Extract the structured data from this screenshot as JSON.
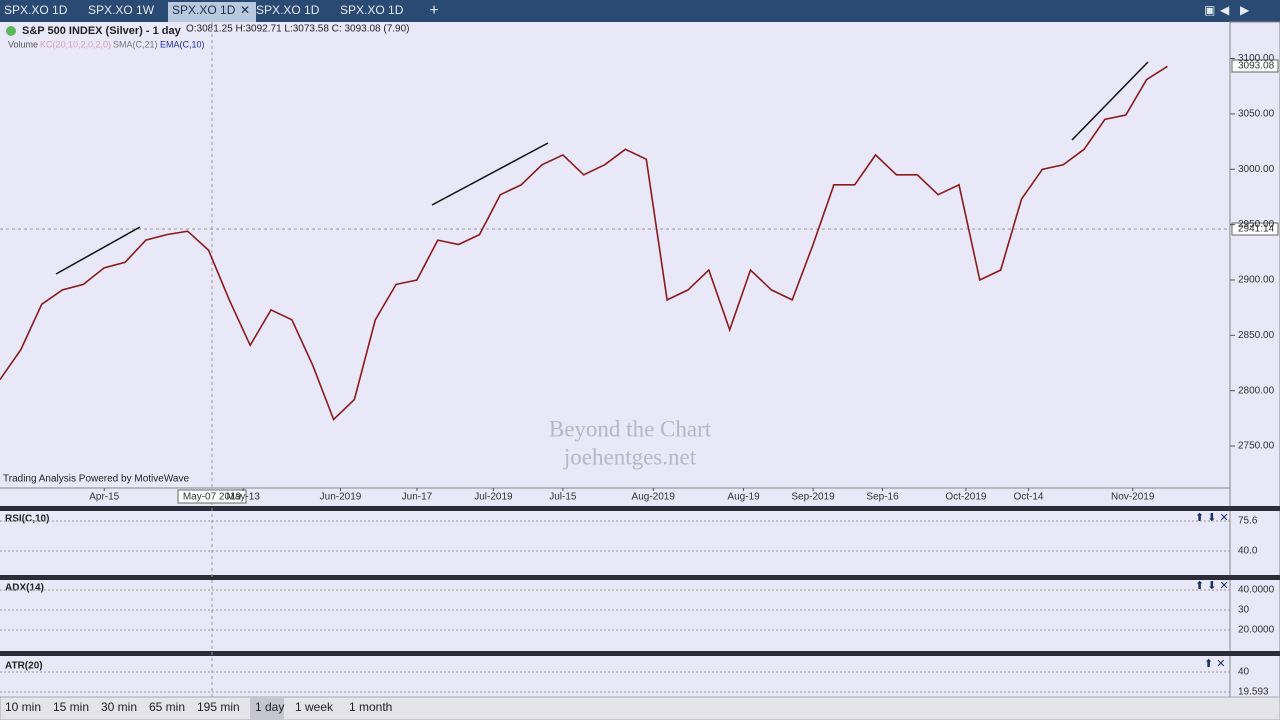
{
  "tabs": [
    "SPX.XO 1D",
    "SPX.XO 1W",
    "SPX.XO 1D",
    "SPX.XO 1D",
    "SPX.XO 1D"
  ],
  "active_tab": 2,
  "legend": {
    "symbol": "S&P 500 INDEX (Silver) - 1 day",
    "ohlc": "O:3081.25  H:3092.71  L:3073.58  C: 3093.08 (7.90)",
    "studies": [
      "Volume",
      "KC(20,10,2,0,2,0)",
      "SMA(C,21)",
      "EMA(C,10)"
    ]
  },
  "watermark": [
    "Beyond the Chart",
    "joehentges.net"
  ],
  "footer_note": "Trading Analysis Powered by MotiveWave",
  "last_price": "3093.08",
  "crosshair": {
    "price": "2941.14",
    "date": "May-07 2019"
  },
  "chart_data": {
    "type": "line",
    "color": "#8b1a1a",
    "x": [
      0,
      3,
      6,
      9,
      12,
      15,
      18,
      21,
      24,
      27,
      30,
      33,
      36,
      39,
      42,
      45,
      48,
      51,
      54,
      57,
      60,
      63,
      66,
      69,
      72,
      75,
      78,
      81,
      84,
      87,
      90,
      93,
      96,
      99,
      102,
      105,
      108,
      111,
      114,
      117,
      120,
      123,
      126,
      129,
      132,
      135,
      138,
      141,
      144,
      147,
      150,
      153,
      156,
      159,
      162,
      165,
      168
    ],
    "values": [
      2810,
      2837,
      2878,
      2891,
      2896,
      2911,
      2916,
      2936,
      2941,
      2944,
      2927,
      2882,
      2841,
      2873,
      2864,
      2823,
      2774,
      2792,
      2864,
      2896,
      2900,
      2936,
      2932,
      2941,
      2977,
      2986,
      3004,
      3013,
      2995,
      3004,
      3018,
      3009,
      2882,
      2891,
      2909,
      2855,
      2909,
      2891,
      2882,
      2932,
      2986,
      2986,
      3013,
      2995,
      2995,
      2977,
      2986,
      2900,
      2909,
      2973,
      3000,
      3004,
      3018,
      3045,
      3049,
      3081,
      3093
    ],
    "xlim": [
      0,
      177
    ],
    "ylim": [
      2713,
      3133
    ],
    "xticks": [
      {
        "value": 15,
        "label": "Apr-15"
      },
      {
        "value": 35,
        "label": "May-13"
      },
      {
        "value": 49,
        "label": "Jun-2019"
      },
      {
        "value": 60,
        "label": "Jun-17"
      },
      {
        "value": 71,
        "label": "Jul-2019"
      },
      {
        "value": 81,
        "label": "Jul-15"
      },
      {
        "value": 94,
        "label": "Aug-2019"
      },
      {
        "value": 107,
        "label": "Aug-19"
      },
      {
        "value": 117,
        "label": "Sep-2019"
      },
      {
        "value": 127,
        "label": "Sep-16"
      },
      {
        "value": 139,
        "label": "Oct-2019"
      },
      {
        "value": 148,
        "label": "Oct-14"
      },
      {
        "value": 163,
        "label": "Nov-2019"
      }
    ],
    "yticks": [
      {
        "value": 2750,
        "label": "2750.00"
      },
      {
        "value": 2800,
        "label": "2800.00"
      },
      {
        "value": 2850,
        "label": "2850.00"
      },
      {
        "value": 2900,
        "label": "2900.00"
      },
      {
        "value": 2950,
        "label": "2950.00"
      },
      {
        "value": 3000,
        "label": "3000.00"
      },
      {
        "value": 3050,
        "label": "3050.00"
      },
      {
        "value": 3100,
        "label": "3100.00"
      }
    ],
    "grid": false
  },
  "panels": [
    {
      "title": "RSI(C,10)",
      "labels": [
        "75.6",
        "40.0"
      ]
    },
    {
      "title": "ADX(14)",
      "labels": [
        "40.0000",
        "30",
        "20.0000"
      ]
    },
    {
      "title": "ATR(20)",
      "labels": [
        "40",
        "19.593"
      ]
    }
  ],
  "timeframes": [
    "10 min",
    "15 min",
    "30 min",
    "65 min",
    "195 min",
    "1 day",
    "1 week",
    "1 month"
  ],
  "active_timeframe": 5
}
